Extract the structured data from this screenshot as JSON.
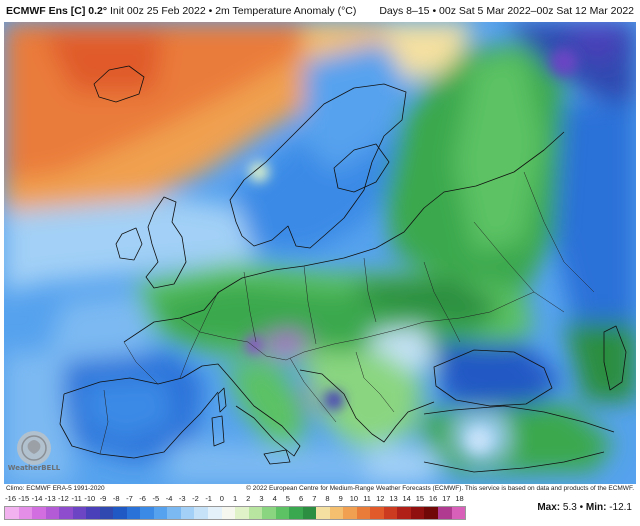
{
  "header": {
    "title_bold": "ECMWF Ens [C] 0.2°",
    "title_rest": " Init 00z 25 Feb 2022 • 2m Temperature Anomaly (°C)",
    "valid": "Days 8–15 • 00z Sat 5 Mar 2022–00z Sat 12 Mar 2022"
  },
  "footer": {
    "climo": "Climo: ECMWF ERA-5 1991-2020",
    "copyright": "© 2022 European Centre for Medium-Range Weather Forecasts (ECMWF). This service is based on data and products of the ECMWF."
  },
  "legend": {
    "ticks": [
      "-16",
      "-15",
      "-14",
      "-13",
      "-12",
      "-11",
      "-10",
      "-9",
      "-8",
      "-7",
      "-6",
      "-5",
      "-4",
      "-3",
      "-2",
      "-1",
      "0",
      "1",
      "2",
      "3",
      "4",
      "5",
      "6",
      "7",
      "8",
      "9",
      "10",
      "11",
      "12",
      "13",
      "14",
      "15",
      "16",
      "17",
      "18"
    ],
    "colors": [
      "#f2b2f0",
      "#e58ee8",
      "#d36ee0",
      "#b35ad6",
      "#8e4dcc",
      "#6b45c4",
      "#4a3fb8",
      "#2f49b0",
      "#2058c4",
      "#2a71d8",
      "#3b8ae6",
      "#56a2ee",
      "#7bb9f2",
      "#a2d0f6",
      "#c6e2f8",
      "#e4f0fa",
      "#f6f7ee",
      "#dff2c8",
      "#b8e6a0",
      "#8ad680",
      "#5cc264",
      "#3aa84e",
      "#2b8e40",
      "#f4e0a0",
      "#f4c070",
      "#f0a050",
      "#ea7c3a",
      "#e05a2a",
      "#cc3a20",
      "#b02018",
      "#901010",
      "#700808",
      "#b03a90",
      "#d860b8"
    ],
    "max_label": "Max:",
    "max_value": "5.3",
    "min_label": "Min:",
    "min_value": "-12.1"
  },
  "logo": {
    "text": "WeatherBELL"
  }
}
